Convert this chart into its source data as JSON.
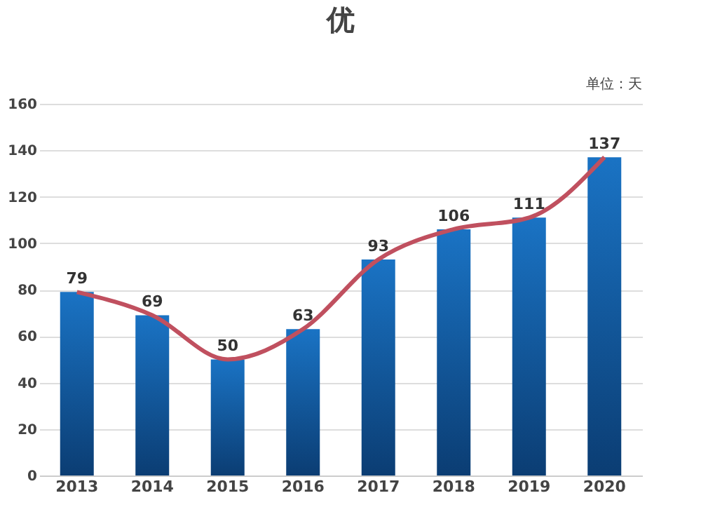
{
  "chart_data": {
    "type": "bar",
    "title": "优",
    "annotations": [
      "单位：天"
    ],
    "categories": [
      "2013",
      "2014",
      "2015",
      "2016",
      "2017",
      "2018",
      "2019",
      "2020"
    ],
    "series": [
      {
        "color": "#1a73c4",
        "values": [
          79,
          69,
          50,
          63,
          93,
          106,
          111,
          137
        ],
        "value_labels": [
          "79",
          "69",
          "50",
          "63",
          "93",
          "106",
          "111",
          "137"
        ]
      },
      {
        "type": "line",
        "color": "#c0505f",
        "values": [
          79,
          69,
          50,
          63,
          93,
          106,
          111,
          137
        ]
      }
    ],
    "ylim": [
      0,
      160
    ],
    "yticks": [
      0,
      20,
      40,
      60,
      80,
      100,
      120,
      140,
      160
    ],
    "grid": "y"
  }
}
